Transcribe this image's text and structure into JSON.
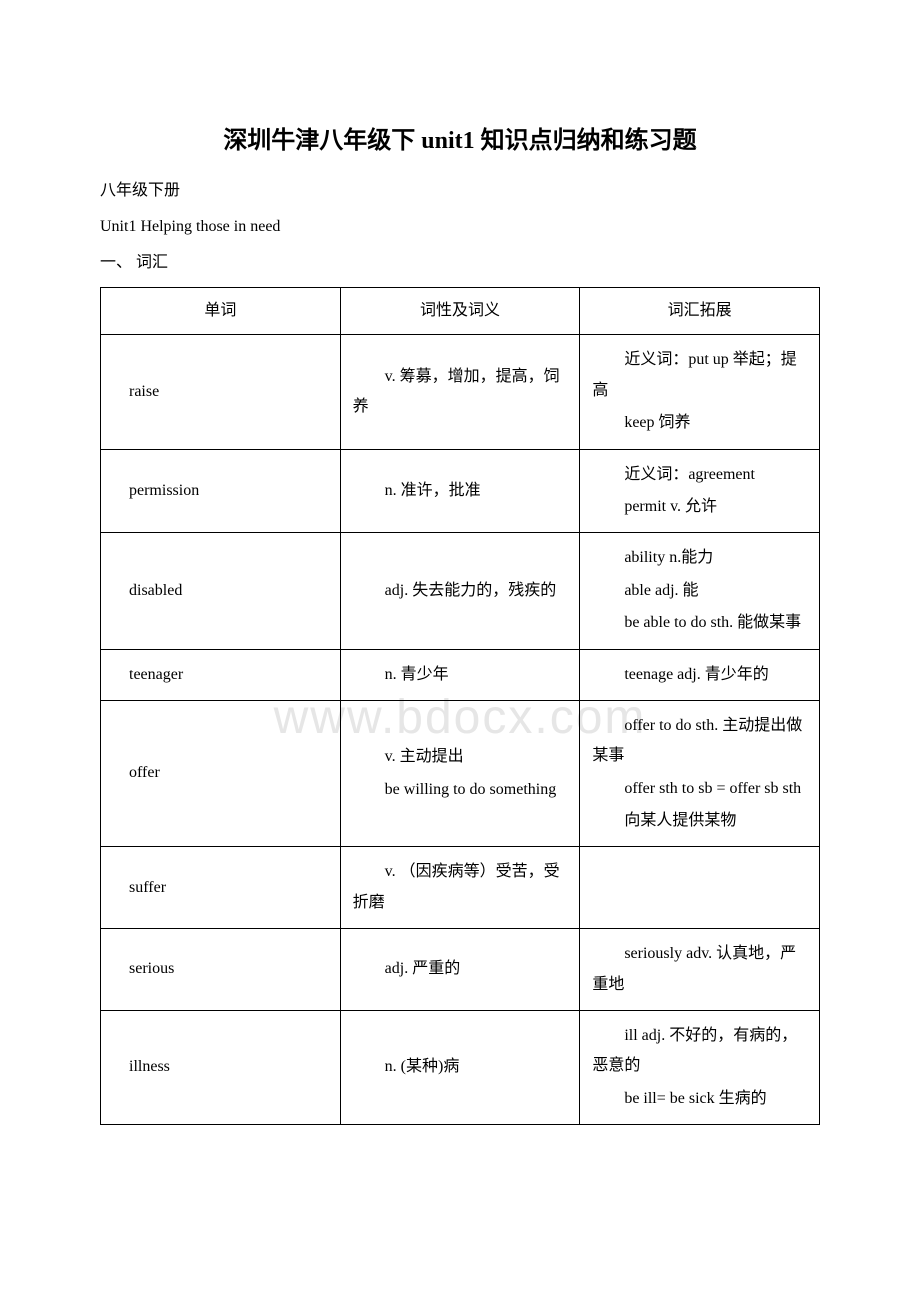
{
  "title": "深圳牛津八年级下 unit1 知识点归纳和练习题",
  "subtitle1": "八年级下册",
  "subtitle2": "Unit1 Helping those in need",
  "section": "一、 词汇",
  "watermark": "www.bdocx.com",
  "table": {
    "headers": [
      "单词",
      "词性及词义",
      "词汇拓展"
    ],
    "rows": [
      {
        "word": "raise",
        "def": [
          "v. 筹募，增加，提高，饲养"
        ],
        "ext": [
          "近义词：put up 举起；提高",
          "keep 饲养"
        ]
      },
      {
        "word": "permission",
        "def": [
          "n. 准许，批准"
        ],
        "ext": [
          "近义词：agreement",
          "permit v. 允许"
        ]
      },
      {
        "word": "disabled",
        "def": [
          "adj. 失去能力的，残疾的"
        ],
        "ext": [
          "ability n.能力",
          "able adj. 能",
          "be able to do sth. 能做某事"
        ]
      },
      {
        "word": "teenager",
        "def": [
          "n. 青少年"
        ],
        "ext": [
          "teenage  adj. 青少年的"
        ]
      },
      {
        "word": "offer",
        "def": [
          "v. 主动提出",
          "be willing to do something"
        ],
        "ext": [
          "offer to do sth. 主动提出做某事",
          "offer sth to sb = offer sb sth",
          "向某人提供某物"
        ]
      },
      {
        "word": "suffer",
        "def": [
          "v. （因疾病等）受苦，受折磨"
        ],
        "ext": []
      },
      {
        "word": "serious",
        "def": [
          "adj. 严重的"
        ],
        "ext": [
          "seriously  adv. 认真地，严重地"
        ]
      },
      {
        "word": "illness",
        "def": [
          "n. (某种)病"
        ],
        "ext": [
          "ill adj. 不好的，有病的，恶意的",
          "be ill= be sick 生病的"
        ]
      }
    ]
  }
}
